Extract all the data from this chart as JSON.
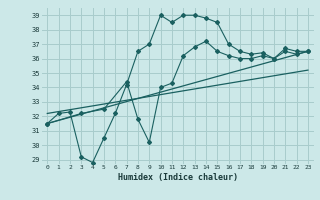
{
  "xlabel": "Humidex (Indice chaleur)",
  "background_color": "#cce8e8",
  "grid_color": "#a8cccc",
  "line_color": "#1a6060",
  "xlim": [
    -0.5,
    23.5
  ],
  "ylim": [
    28.7,
    39.5
  ],
  "yticks": [
    29,
    30,
    31,
    32,
    33,
    34,
    35,
    36,
    37,
    38,
    39
  ],
  "xticks": [
    0,
    1,
    2,
    3,
    4,
    5,
    6,
    7,
    8,
    9,
    10,
    11,
    12,
    13,
    14,
    15,
    16,
    17,
    18,
    19,
    20,
    21,
    22,
    23
  ],
  "line1_x": [
    0,
    1,
    2,
    3,
    4,
    5,
    6,
    7,
    8,
    9,
    10,
    11,
    12,
    13,
    14,
    15,
    16,
    17,
    18,
    19,
    20,
    21,
    22,
    23
  ],
  "line1_y": [
    31.5,
    32.2,
    32.3,
    29.2,
    28.8,
    30.5,
    32.2,
    34.2,
    36.5,
    37.0,
    39.0,
    38.5,
    39.0,
    39.0,
    38.8,
    38.5,
    37.0,
    36.5,
    36.3,
    36.4,
    36.0,
    36.7,
    36.5,
    36.5
  ],
  "line2_x": [
    0,
    3,
    5,
    7,
    8,
    9,
    10,
    11,
    12,
    13,
    14,
    15,
    16,
    17,
    18,
    19,
    20,
    21,
    22,
    23
  ],
  "line2_y": [
    31.5,
    32.2,
    32.5,
    34.4,
    31.8,
    30.2,
    34.0,
    34.3,
    36.2,
    36.8,
    37.2,
    36.5,
    36.2,
    36.0,
    36.0,
    36.2,
    36.0,
    36.5,
    36.3,
    36.5
  ],
  "line3_x": [
    0,
    23
  ],
  "line3_y": [
    31.5,
    36.5
  ],
  "line4_x": [
    0,
    23
  ],
  "line4_y": [
    32.2,
    35.2
  ]
}
